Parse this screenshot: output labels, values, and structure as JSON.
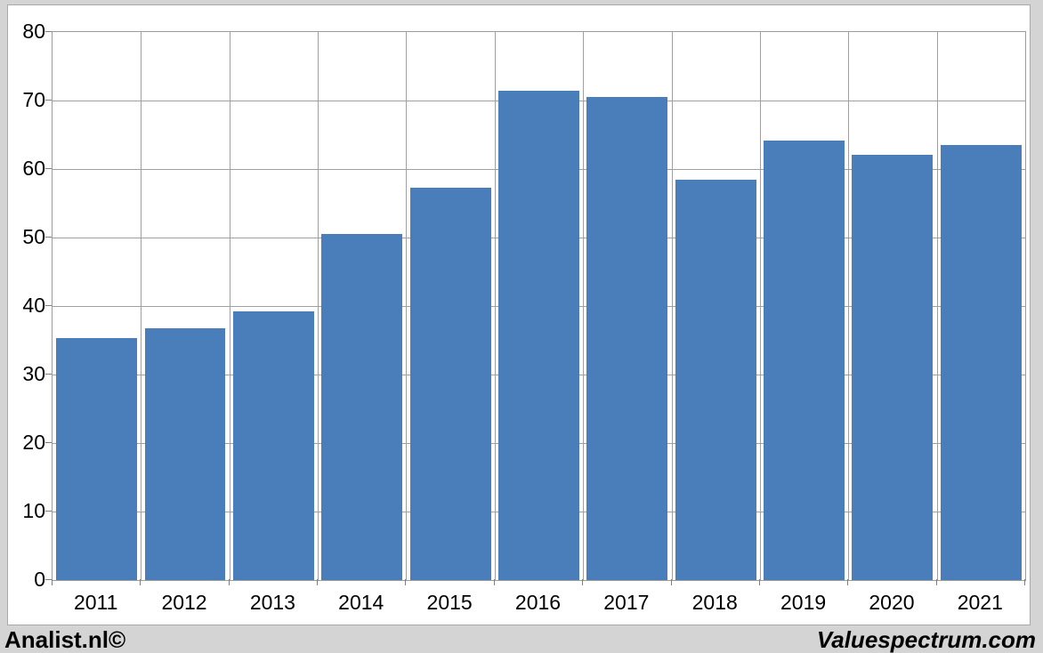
{
  "chart_data": {
    "type": "bar",
    "title": "",
    "xlabel": "",
    "ylabel": "",
    "categories": [
      "2011",
      "2012",
      "2013",
      "2014",
      "2015",
      "2016",
      "2017",
      "2018",
      "2019",
      "2020",
      "2021"
    ],
    "values": [
      35.3,
      36.8,
      39.2,
      50.5,
      57.3,
      71.4,
      70.5,
      58.4,
      64.2,
      62.1,
      63.5
    ],
    "ylim": [
      0,
      80
    ],
    "yticks": [
      0,
      10,
      20,
      30,
      40,
      50,
      60,
      70,
      80
    ],
    "grid": true,
    "legend": "none",
    "bar_color": "#4a7ebb",
    "gridline_color": "#a0a0a0",
    "axis_tick_color": "#7f7f7f",
    "plot_bg": "#ffffff",
    "page_bg": "#d4d4d4"
  },
  "footer": {
    "left_text": "Analist.nl©",
    "right_text": "Valuespectrum.com"
  }
}
